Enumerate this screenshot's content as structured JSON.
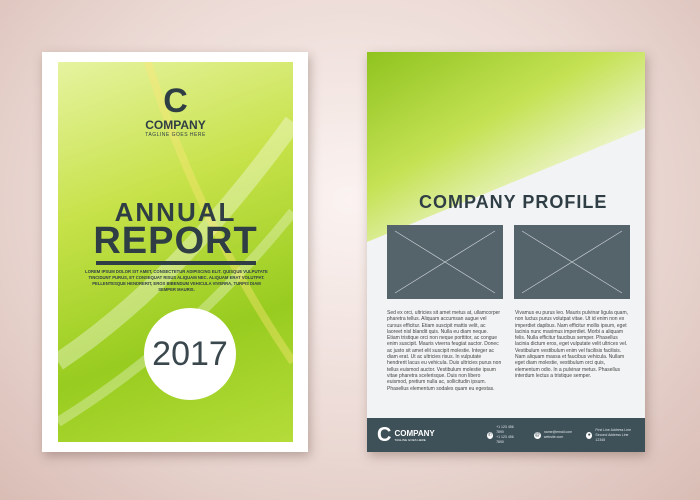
{
  "cover": {
    "logo_letter": "C",
    "company": "COMPANY",
    "tagline": "TAGLINE GOES HERE",
    "title_line1": "ANNUAL",
    "title_line2": "REPORT",
    "lorem": "LOREM IPSUM DOLOR SIT AMET, CONSECTETUR ADIPISCING ELIT. QUISQUE VULPUTATE TINCIDUNT PURUS, ET CONSEQUAT RISUS ALIQUAM NEC. ALIQUAM ERAT VOLUTPAT. PELLENTESQUE HENDRERIT, EROS BIBENDUM VEHICULA VIVERRA, TURPIS DIAM SEMPER MAURIS.",
    "year": "2017"
  },
  "profile": {
    "title": "COMPANY PROFILE",
    "col1": "Sed ex orci, ultricies sit amet metus at, ullamcorper pharetra tellus. Aliquam accumsan augue vel cursus efficitur. Etiam suscipit mattis velit, ac laoreet nisl blandit quis. Nulla eu diam neque. Etiam tristique orci non neque porttitor, ac congue enim suscipit. Mauris viverra feugiat auctor. Donec ac justo sit amet elit suscipit molestie. Integer ac diam erat. Ut ac ultricies risus. In vulputate hendrerit lacus eu vehicula. Duis ultricies purus non tellus euismod auctor. Vestibulum molestie ipsum vitae pharetra scelerisque. Duis non libero euismod, pretium nulla ac, sollicitudin ipsum. Phasellus elementum sodales quam eu egestas.",
    "col2": "Vivamus eu purus leo. Mauris pulvinar ligula quam, non luctus purus volutpat vitae. Ut id enim non ex imperdiet dapibus. Nam efficitur mollis ipsum, eget lacinia nunc maximus imperdiet. Morbi a aliquam felis. Nulla efficitur faucibus semper. Phasellus lacinia dictum eros, eget vulputate velit ultrices vel. Vestibulum vestibulum enim vel facilisis facilisis. Nam aliquam massa et faucibus vehicula. Nullam eget diam molestie, vestibulum orci quis, elementum odio. In a pulvinar metus. Phasellus interdum lectus a tristique semper.",
    "footer": {
      "logo_letter": "C",
      "company": "COMPANY",
      "tagline": "TAGLINE GOES HERE",
      "phone": [
        "+1 123 456 7890",
        "+1 123 456 7890"
      ],
      "email": [
        "name@email.com",
        "website.com"
      ],
      "address": [
        "First Line Address Line",
        "Second Address Line 12345"
      ]
    }
  }
}
